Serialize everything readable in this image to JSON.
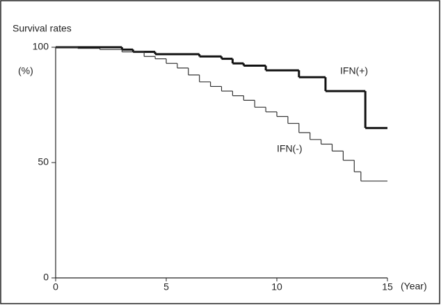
{
  "chart_data": {
    "type": "line",
    "step": "post",
    "title": "Survival rates",
    "y_label": "(%)",
    "x_label": "(Year)",
    "xlim": [
      0,
      15
    ],
    "xticks": [
      0,
      5,
      10,
      15
    ],
    "ylim": [
      0,
      100
    ],
    "yticks": [
      0,
      50,
      100
    ],
    "series": [
      {
        "name": "IFN(+)",
        "color": "#111111",
        "x": [
          0,
          3,
          3.5,
          4.5,
          6.5,
          7.5,
          8,
          8.5,
          9.5,
          11,
          12.2,
          14,
          15
        ],
        "values": [
          100,
          99,
          98,
          97,
          96,
          95,
          93,
          92,
          90,
          87,
          81,
          65,
          65
        ]
      },
      {
        "name": "IFN(-)",
        "color": "#333333",
        "x": [
          0,
          1,
          2,
          3,
          4,
          4.5,
          5,
          5.5,
          6,
          6.5,
          7,
          7.5,
          8,
          8.5,
          9,
          9.5,
          10,
          10.5,
          11,
          11.5,
          12,
          12.5,
          13,
          13.5,
          13.8,
          15
        ],
        "values": [
          100,
          99.5,
          99,
          98,
          96,
          95,
          93,
          91,
          88,
          85,
          83,
          81,
          79,
          77,
          74,
          72,
          70,
          67,
          63,
          60,
          58,
          55,
          51,
          46,
          42,
          42
        ]
      }
    ]
  }
}
